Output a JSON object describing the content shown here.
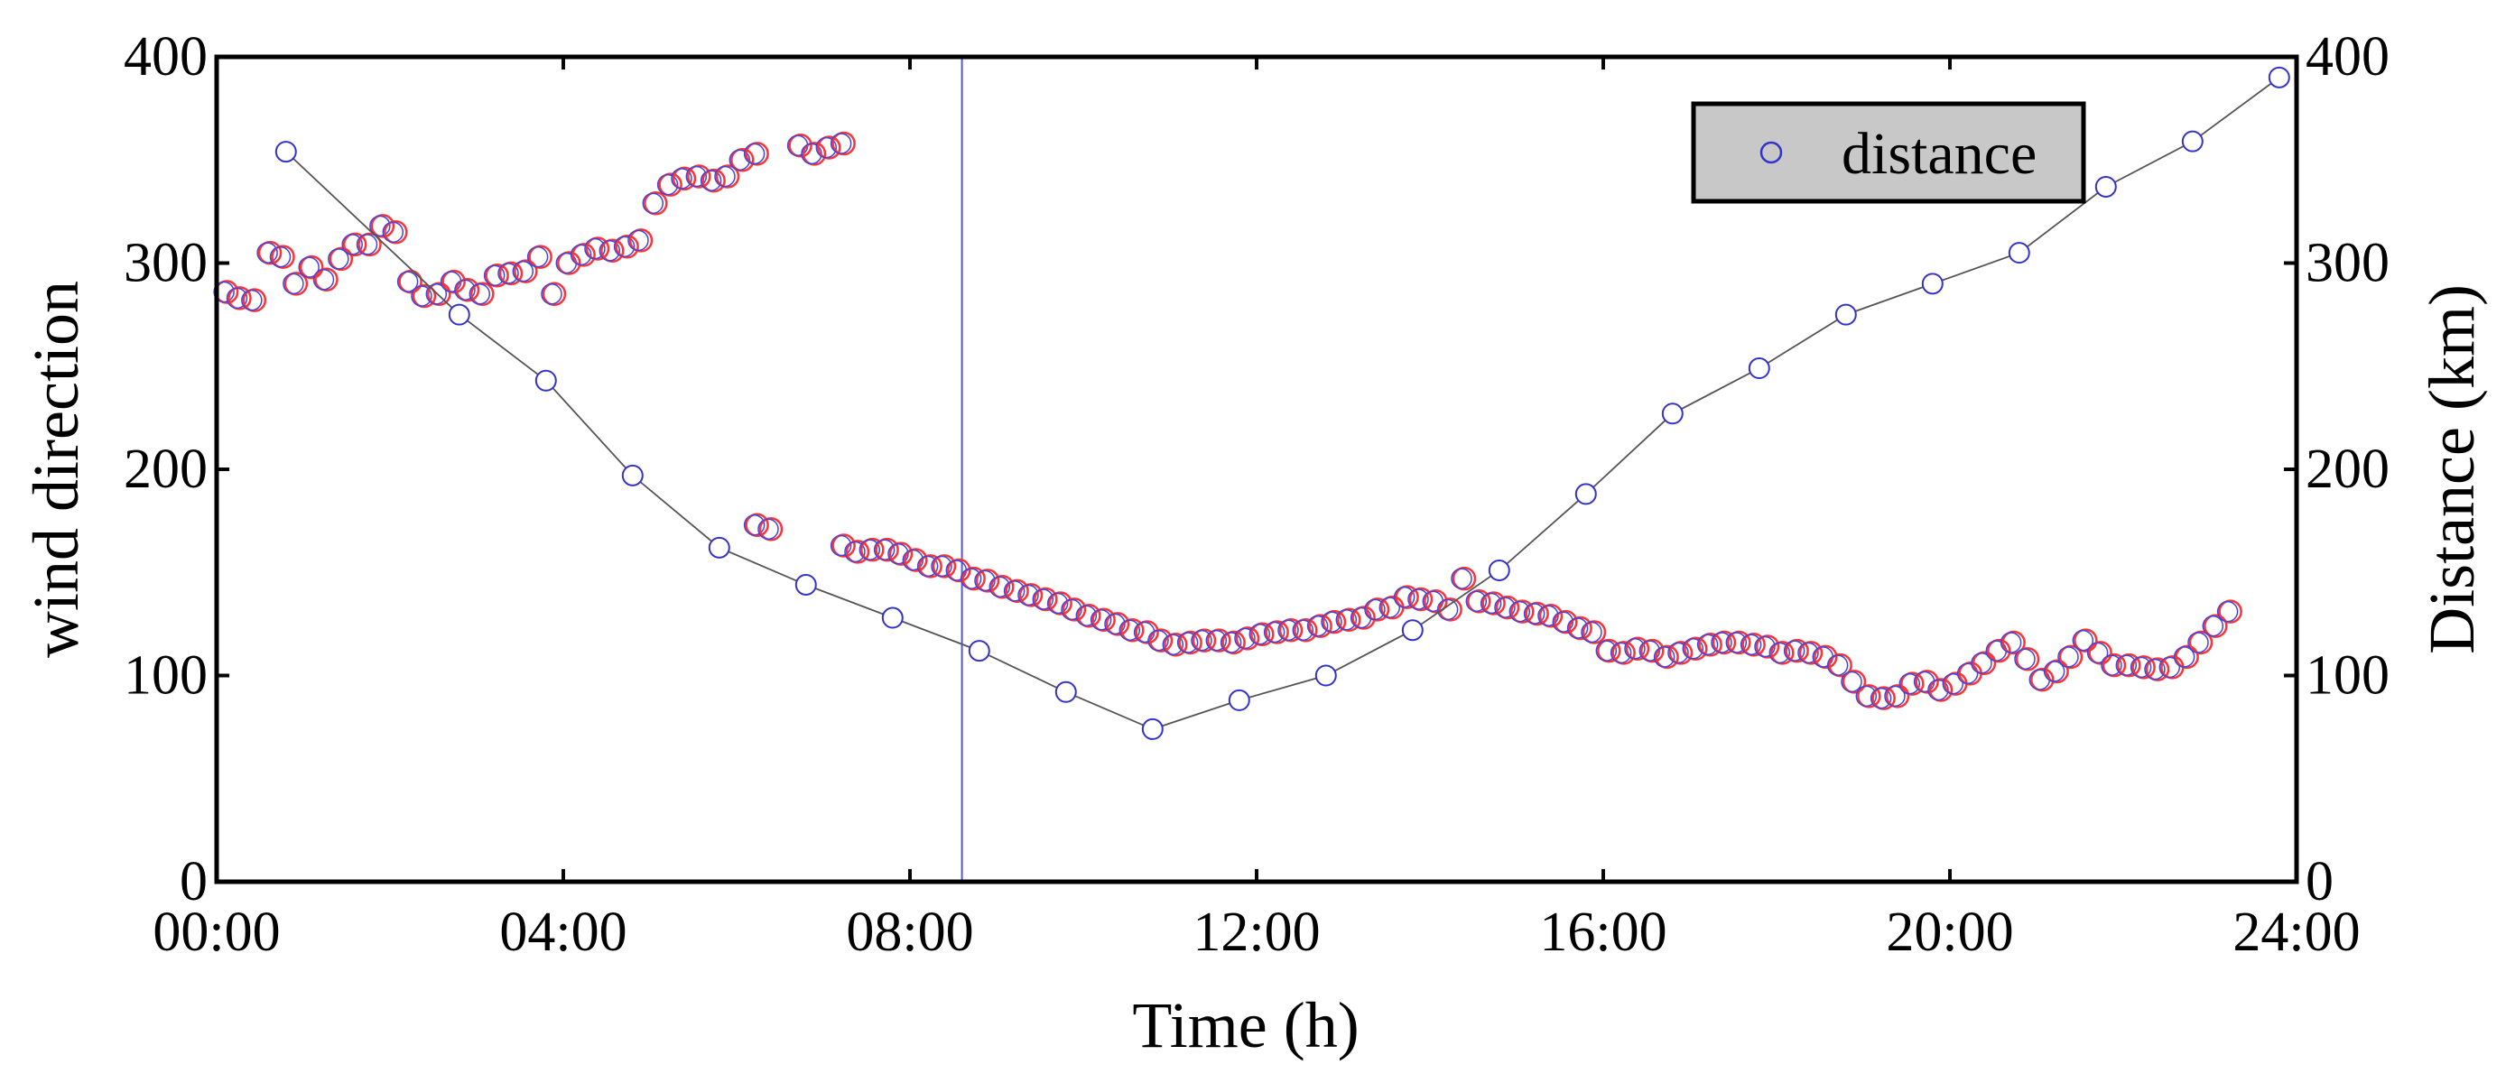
{
  "chart_data": {
    "type": "scatter",
    "xlabel": "Time (h)",
    "ylabel_left": "wind direction",
    "ylabel_right": "Distance (km)",
    "xlim": [
      0,
      24
    ],
    "ylim_left": [
      0,
      400
    ],
    "ylim_right": [
      0,
      400
    ],
    "x_ticks": [
      0,
      4,
      8,
      12,
      16,
      20,
      24
    ],
    "x_tick_labels": [
      "00:00",
      "04:00",
      "08:00",
      "12:00",
      "16:00",
      "20:00",
      "24:00"
    ],
    "y_ticks_left": [
      0,
      100,
      200,
      300,
      400
    ],
    "y_tick_labels_left": [
      "0",
      "100",
      "200",
      "300",
      "400"
    ],
    "y_ticks_right": [
      0,
      100,
      200,
      300,
      400
    ],
    "y_tick_labels_right": [
      "0",
      "100",
      "200",
      "300",
      "400"
    ],
    "vertical_line_x": 8.6,
    "legend": {
      "label": "distance",
      "position": "top-right",
      "marker_color": "#3333cc"
    },
    "colors": {
      "wind_marker_outer": "#ff3333",
      "wind_marker_inner": "#4444dd",
      "distance_marker": "#3333cc",
      "distance_line": "#555555",
      "vline": "#5555dd",
      "legend_bg": "#c8c8c8"
    },
    "series": [
      {
        "name": "wind direction",
        "axis": "left",
        "points": [
          [
            0.1,
            286
          ],
          [
            0.25,
            283
          ],
          [
            0.42,
            282
          ],
          [
            0.6,
            305
          ],
          [
            0.75,
            303
          ],
          [
            0.9,
            290
          ],
          [
            1.08,
            298
          ],
          [
            1.25,
            292
          ],
          [
            1.42,
            302
          ],
          [
            1.58,
            309
          ],
          [
            1.75,
            309
          ],
          [
            1.9,
            318
          ],
          [
            2.05,
            315
          ],
          [
            2.22,
            291
          ],
          [
            2.38,
            284
          ],
          [
            2.55,
            285
          ],
          [
            2.72,
            291
          ],
          [
            2.88,
            287
          ],
          [
            3.05,
            285
          ],
          [
            3.22,
            294
          ],
          [
            3.38,
            295
          ],
          [
            3.55,
            296
          ],
          [
            3.72,
            303
          ],
          [
            3.88,
            285
          ],
          [
            4.05,
            300
          ],
          [
            4.22,
            304
          ],
          [
            4.38,
            307
          ],
          [
            4.55,
            306
          ],
          [
            4.72,
            308
          ],
          [
            4.88,
            311
          ],
          [
            5.05,
            329
          ],
          [
            5.22,
            338
          ],
          [
            5.38,
            341
          ],
          [
            5.55,
            342
          ],
          [
            5.72,
            340
          ],
          [
            5.88,
            342
          ],
          [
            6.05,
            350
          ],
          [
            6.22,
            353
          ],
          [
            6.22,
            173
          ],
          [
            6.38,
            171
          ],
          [
            6.72,
            357
          ],
          [
            6.88,
            353
          ],
          [
            7.05,
            356
          ],
          [
            7.22,
            358
          ],
          [
            7.22,
            163
          ],
          [
            7.38,
            160
          ],
          [
            7.55,
            161
          ],
          [
            7.72,
            161
          ],
          [
            7.88,
            159
          ],
          [
            8.05,
            156
          ],
          [
            8.22,
            153
          ],
          [
            8.38,
            153
          ],
          [
            8.55,
            151
          ],
          [
            8.72,
            147
          ],
          [
            8.88,
            146
          ],
          [
            9.05,
            143
          ],
          [
            9.22,
            141
          ],
          [
            9.38,
            139
          ],
          [
            9.55,
            137
          ],
          [
            9.72,
            135
          ],
          [
            9.88,
            132
          ],
          [
            10.05,
            129
          ],
          [
            10.22,
            127
          ],
          [
            10.38,
            125
          ],
          [
            10.55,
            122
          ],
          [
            10.72,
            121
          ],
          [
            10.88,
            117
          ],
          [
            11.05,
            115
          ],
          [
            11.22,
            116
          ],
          [
            11.38,
            117
          ],
          [
            11.55,
            117
          ],
          [
            11.72,
            116
          ],
          [
            11.88,
            118
          ],
          [
            12.05,
            120
          ],
          [
            12.22,
            121
          ],
          [
            12.38,
            122
          ],
          [
            12.55,
            122
          ],
          [
            12.72,
            124
          ],
          [
            12.88,
            126
          ],
          [
            13.05,
            127
          ],
          [
            13.22,
            128
          ],
          [
            13.38,
            132
          ],
          [
            13.55,
            133
          ],
          [
            13.72,
            138
          ],
          [
            13.88,
            137
          ],
          [
            14.05,
            136
          ],
          [
            14.22,
            132
          ],
          [
            14.38,
            147
          ],
          [
            14.55,
            136
          ],
          [
            14.72,
            135
          ],
          [
            14.88,
            133
          ],
          [
            15.05,
            131
          ],
          [
            15.22,
            130
          ],
          [
            15.38,
            129
          ],
          [
            15.55,
            126
          ],
          [
            15.72,
            123
          ],
          [
            15.88,
            121
          ],
          [
            16.05,
            112
          ],
          [
            16.22,
            111
          ],
          [
            16.38,
            113
          ],
          [
            16.55,
            112
          ],
          [
            16.72,
            109
          ],
          [
            16.88,
            111
          ],
          [
            17.05,
            113
          ],
          [
            17.22,
            115
          ],
          [
            17.38,
            116
          ],
          [
            17.55,
            116
          ],
          [
            17.72,
            115
          ],
          [
            17.88,
            114
          ],
          [
            18.05,
            111
          ],
          [
            18.22,
            112
          ],
          [
            18.38,
            111
          ],
          [
            18.55,
            109
          ],
          [
            18.72,
            105
          ],
          [
            18.88,
            97
          ],
          [
            19.05,
            90
          ],
          [
            19.22,
            89
          ],
          [
            19.38,
            90
          ],
          [
            19.55,
            96
          ],
          [
            19.72,
            97
          ],
          [
            19.88,
            93
          ],
          [
            20.05,
            96
          ],
          [
            20.22,
            101
          ],
          [
            20.38,
            106
          ],
          [
            20.55,
            112
          ],
          [
            20.72,
            116
          ],
          [
            20.88,
            108
          ],
          [
            21.05,
            98
          ],
          [
            21.22,
            102
          ],
          [
            21.38,
            109
          ],
          [
            21.55,
            117
          ],
          [
            21.72,
            111
          ],
          [
            21.88,
            105
          ],
          [
            22.05,
            105
          ],
          [
            22.22,
            104
          ],
          [
            22.38,
            103
          ],
          [
            22.55,
            104
          ],
          [
            22.72,
            109
          ],
          [
            22.88,
            116
          ],
          [
            23.05,
            124
          ],
          [
            23.22,
            131
          ]
        ]
      },
      {
        "name": "distance",
        "axis": "right",
        "connected": true,
        "points": [
          [
            0.8,
            354
          ],
          [
            2.8,
            275
          ],
          [
            3.8,
            243
          ],
          [
            4.8,
            197
          ],
          [
            5.8,
            162
          ],
          [
            6.8,
            144
          ],
          [
            7.8,
            128
          ],
          [
            8.8,
            112
          ],
          [
            9.8,
            92
          ],
          [
            10.8,
            74
          ],
          [
            11.8,
            88
          ],
          [
            12.8,
            100
          ],
          [
            13.8,
            122
          ],
          [
            14.8,
            151
          ],
          [
            15.8,
            188
          ],
          [
            16.8,
            227
          ],
          [
            17.8,
            249
          ],
          [
            18.8,
            275
          ],
          [
            19.8,
            290
          ],
          [
            20.8,
            305
          ],
          [
            21.8,
            337
          ],
          [
            22.8,
            359
          ],
          [
            23.8,
            390
          ]
        ]
      }
    ]
  }
}
